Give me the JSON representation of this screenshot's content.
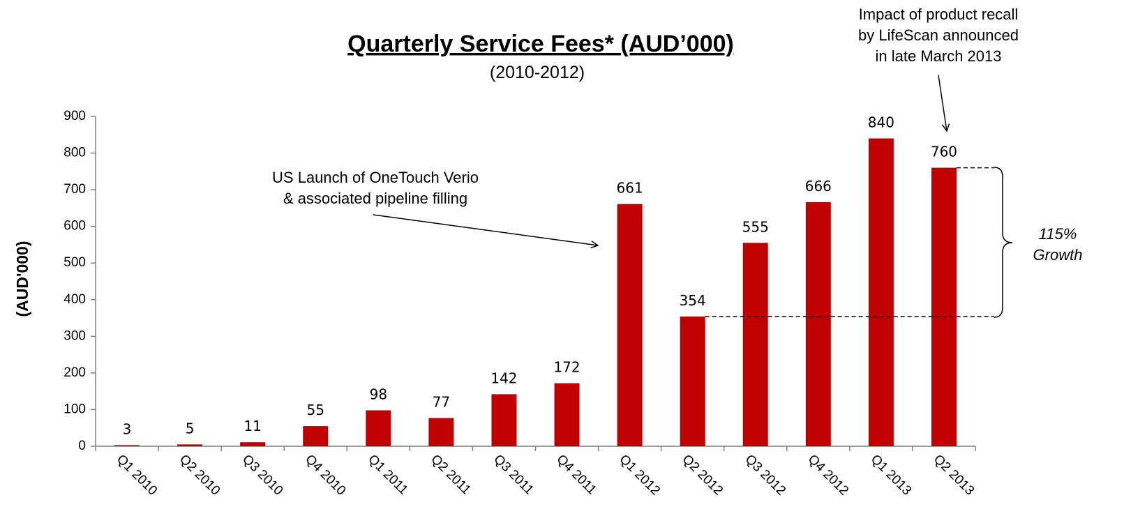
{
  "chart_data": {
    "type": "bar",
    "title": "Quarterly Service Fees* (AUD’000)",
    "subtitle": "(2010-2012)",
    "y_label": "(AUD'000)",
    "categories": [
      "Q1 2010",
      "Q2 2010",
      "Q3 2010",
      "Q4 2010",
      "Q1 2011",
      "Q2 2011",
      "Q3 2011",
      "Q4 2011",
      "Q1 2012",
      "Q2 2012",
      "Q3 2012",
      "Q4 2012",
      "Q1 2013",
      "Q2 2013"
    ],
    "values": [
      3,
      5,
      11,
      55,
      98,
      77,
      142,
      172,
      661,
      354,
      555,
      666,
      840,
      760
    ],
    "color": "#c00000",
    "ylim": [
      0,
      900
    ],
    "yticks": [
      0,
      100,
      200,
      300,
      400,
      500,
      600,
      700,
      800,
      900
    ],
    "grid": false,
    "annotations": {
      "launch": [
        "US Launch of OneTouch Verio",
        "& associated pipeline filling"
      ],
      "recall": [
        "Impact of product recall",
        "by LifeScan announced",
        "in late March 2013"
      ],
      "growth": [
        "115%",
        "Growth"
      ]
    }
  }
}
